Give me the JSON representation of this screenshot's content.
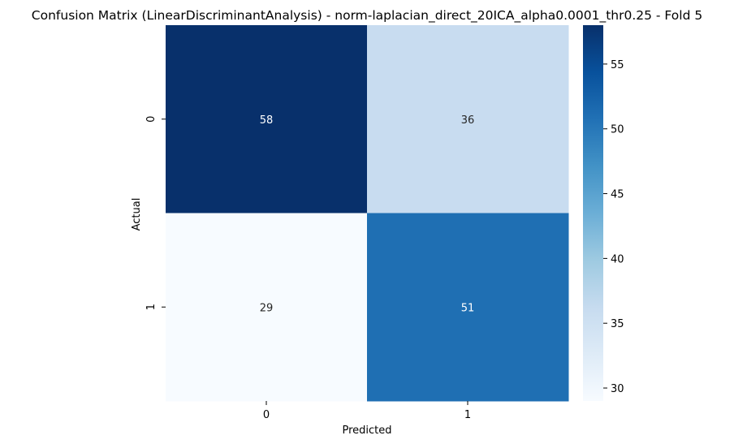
{
  "chart_data": {
    "type": "heatmap",
    "title": "Confusion Matrix (LinearDiscriminantAnalysis) - norm-laplacian_direct_20ICA_alpha0.0001_thr0.25 - Fold 5",
    "xlabel": "Predicted",
    "ylabel": "Actual",
    "x_categories": [
      "0",
      "1"
    ],
    "y_categories": [
      "0",
      "1"
    ],
    "values": [
      [
        58,
        36
      ],
      [
        29,
        51
      ]
    ],
    "colormap": "Blues",
    "colorbar": {
      "min": 29,
      "max": 58,
      "ticks": [
        30,
        35,
        40,
        45,
        50,
        55
      ]
    },
    "grid": false
  }
}
